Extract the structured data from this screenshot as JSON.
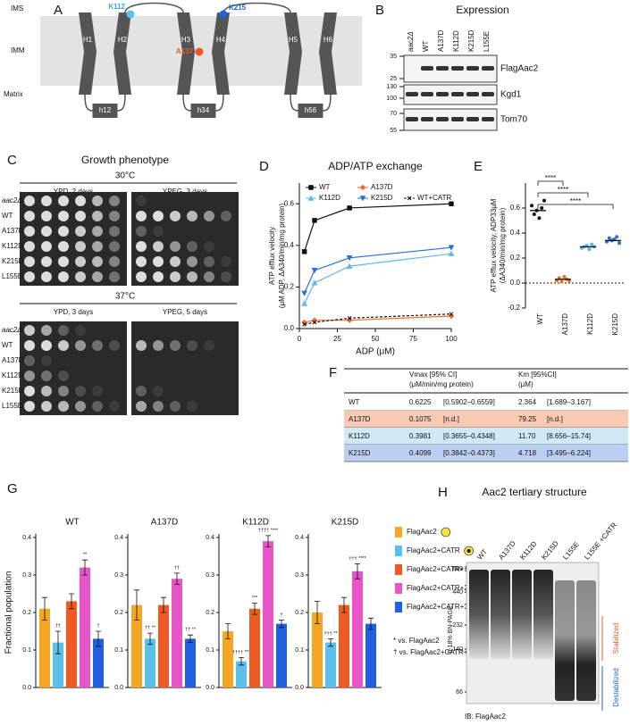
{
  "panel_a": {
    "letter": "A",
    "regions": [
      "IMS",
      "IMM",
      "Matrix"
    ],
    "helices": [
      "H1",
      "H2",
      "H3",
      "H4",
      "H5",
      "H6"
    ],
    "loops": [
      "h12",
      "h34",
      "h56"
    ],
    "residues": [
      "K112",
      "K215",
      "A137"
    ]
  },
  "panel_b": {
    "letter": "B",
    "title": "Expression",
    "lanes": [
      "aac2Δ",
      "WT",
      "A137D",
      "K112D",
      "K215D",
      "L155E"
    ],
    "markers": [
      35,
      25,
      130,
      100,
      70,
      55
    ],
    "blots": [
      "FlagAac2",
      "Kgd1",
      "Tom70"
    ]
  },
  "panel_c": {
    "letter": "C",
    "title": "Growth phenotype",
    "temperatures": [
      "30°C",
      "37°C"
    ],
    "plates": [
      "YPD, 2 days",
      "YPEG, 3 days",
      "YPD, 3 days",
      "YPEG, 5 days"
    ],
    "strains": [
      "aac2Δ",
      "WT",
      "A137D",
      "K112D",
      "K215D",
      "L155E"
    ]
  },
  "panel_f": {
    "letter": "F",
    "headers": [
      [
        "Vmax [95% CI]",
        "(μM/min/mg protein)"
      ],
      [
        "Km [95%CI]",
        "(μM)"
      ]
    ],
    "rows": [
      [
        "WT",
        "0.6225",
        "[0.5902–0.6559]",
        "2.364",
        "[1.689–3.167]"
      ],
      [
        "A137D",
        "0.1075",
        "[n.d.]",
        "79.25",
        "[n.d.]"
      ],
      [
        "K112D",
        "0.3981",
        "[0.3655–0.4348]",
        "11.70",
        "[8.656–15.74]"
      ],
      [
        "K215D",
        "0.4099",
        "[0.3842–0.4373]",
        "4.718",
        "[3.495–6.224]"
      ]
    ],
    "row_colors": [
      "#ffffff",
      "#f8c9b3",
      "#cfe9f7",
      "#bccff2"
    ]
  },
  "panel_h": {
    "letter": "H",
    "title": "Aac2 tertiary structure",
    "lanes": [
      "WT",
      "A137D",
      "K112D",
      "K215D",
      "L155E",
      "L155E +CATR"
    ],
    "markers": [
      669,
      440,
      232,
      140,
      66
    ],
    "gel_label": "6-18% BN-PAGE",
    "stabilized": "Stabilized",
    "destabilized": "Destabilized",
    "footer": "IB: FlagAac2"
  },
  "chart_data": [
    {
      "type": "line",
      "letter": "D",
      "title": "ADP/ATP exchange",
      "xlabel": "ADP (μM)",
      "ylabel": [
        "ATP efflux velocity",
        "(μM ADP, ΔA340/min/mg protein)"
      ],
      "x": [
        3.3,
        10,
        33,
        100
      ],
      "xlim": [
        0,
        100
      ],
      "xticks": [
        0,
        25,
        50,
        75,
        100
      ],
      "ylim": [
        0,
        0.7
      ],
      "yticks": [
        {
          "value": 0,
          "label": "0.0"
        },
        0.2,
        0.4,
        0.6
      ],
      "series": [
        {
          "name": "WT",
          "color": "#111111",
          "marker": "square",
          "values": [
            0.37,
            0.52,
            0.58,
            0.6
          ]
        },
        {
          "name": "A137D",
          "color": "#f26b2a",
          "marker": "diamond",
          "values": [
            0.03,
            0.04,
            0.04,
            0.06
          ]
        },
        {
          "name": "K112D",
          "color": "#5db8e8",
          "marker": "triangle",
          "values": [
            0.12,
            0.22,
            0.3,
            0.36
          ]
        },
        {
          "name": "K215D",
          "color": "#2a6fd6",
          "marker": "triangle-down",
          "values": [
            0.17,
            0.28,
            0.34,
            0.39
          ]
        },
        {
          "name": "WT+CATR",
          "color": "#111111",
          "marker": "cross",
          "dash": true,
          "values": [
            0.02,
            0.03,
            0.05,
            0.07
          ]
        }
      ]
    },
    {
      "type": "dot",
      "letter": "E",
      "ylabel": [
        "ATP efflux velocity, ADP33μM",
        "(ΔA340/min/mg protein)"
      ],
      "categories": [
        "WT",
        "A137D",
        "K112D",
        "K215D"
      ],
      "colors": [
        "#111111",
        "#f26b2a",
        "#5db8e8",
        "#2a6fd6"
      ],
      "values": [
        0.58,
        0.03,
        0.29,
        0.34
      ],
      "points": [
        [
          0.62,
          0.55,
          0.58,
          0.52,
          0.6,
          0.66
        ],
        [
          0.02,
          0.04,
          0.01,
          0.05,
          0.03,
          0.02
        ],
        [
          0.28,
          0.29,
          0.3,
          0.27,
          0.31,
          0.29
        ],
        [
          0.33,
          0.36,
          0.34,
          0.35,
          0.37,
          0.32
        ]
      ],
      "significance": [
        null,
        "****",
        "****",
        "****"
      ],
      "zero_line": true,
      "ylim": [
        -0.2,
        0.8
      ],
      "yticks": [
        -0.2,
        {
          "value": 0,
          "label": "0.0"
        },
        0.2,
        0.4,
        0.6
      ]
    },
    {
      "type": "bar_panels",
      "letter": "G",
      "ylabel": "Fractional population",
      "categories": [
        "WT",
        "A137D",
        "K112D",
        "K215D"
      ],
      "ylim": [
        0,
        0.4
      ],
      "yticks": [
        {
          "value": 0,
          "label": "0.0"
        },
        0.1,
        0.2,
        0.3,
        0.4
      ],
      "series": [
        {
          "name": "FlagAac2",
          "color": "#f5a623",
          "values": [
            0.21,
            0.22,
            0.15,
            0.2
          ],
          "errors": [
            0.03,
            0.04,
            0.02,
            0.03
          ],
          "annotations": [
            null,
            null,
            null,
            null
          ]
        },
        {
          "name": "FlagAac2+CATR",
          "color": "#5bc0eb",
          "values": [
            0.12,
            0.13,
            0.07,
            0.12
          ],
          "errors": [
            0.03,
            0.015,
            0.01,
            0.01
          ],
          "annotations": [
            "††",
            "†† **",
            "†††† ***",
            "††† **"
          ]
        },
        {
          "name": "FlagAac2+CATR+1CL",
          "color": "#ee5a24",
          "values": [
            0.23,
            0.22,
            0.21,
            0.22
          ],
          "errors": [
            0.02,
            0.02,
            0.015,
            0.02
          ],
          "annotations": [
            null,
            null,
            "***",
            null
          ]
        },
        {
          "name": "FlagAac2+CATR+2CL",
          "color": "#e855c8",
          "values": [
            0.32,
            0.29,
            0.39,
            0.31
          ],
          "errors": [
            0.02,
            0.015,
            0.015,
            0.02
          ],
          "annotations": [
            "**",
            "††",
            "†††† ****",
            "††† ****"
          ]
        },
        {
          "name": "FlagAac2+CATR+3CL",
          "color": "#1f5fe0",
          "values": [
            0.13,
            0.13,
            0.17,
            0.17
          ],
          "errors": [
            0.02,
            0.01,
            0.01,
            0.015
          ],
          "annotations": [
            "†",
            "†† **",
            "†",
            null
          ]
        }
      ],
      "notes": [
        "* vs. FlagAac2",
        "† vs. FlagAac2+CATR+1CL"
      ]
    }
  ]
}
